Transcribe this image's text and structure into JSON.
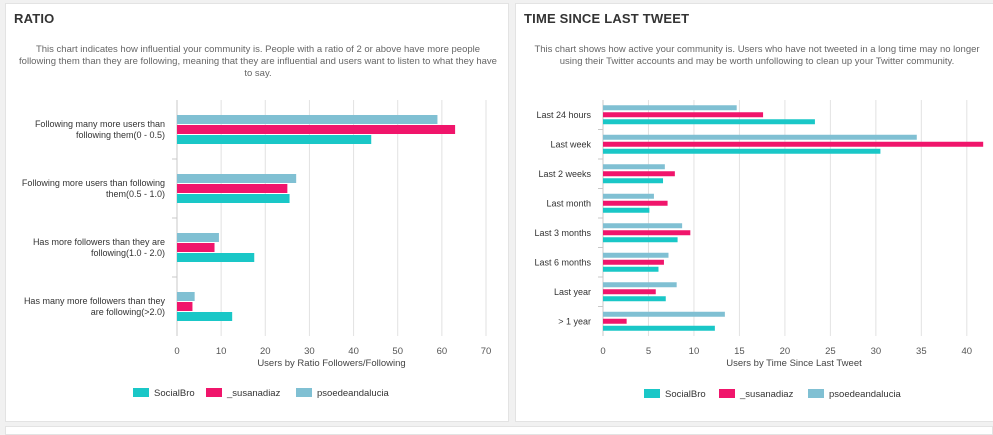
{
  "colors": {
    "SocialBro": "#1ac7c7",
    "_susanadiaz": "#f0156b",
    "psoedeandalucia": "#80c0d3"
  },
  "panels": [
    {
      "title": "RATIO",
      "description": "This chart indicates how influential your community is. People with a ratio of 2 or above have more people following them than they are following, meaning that they are influential and users want to listen to what they have to say."
    },
    {
      "title": "TIME SINCE LAST TWEET",
      "description": "This chart shows how active your community is. Users who have not tweeted in a long time may no longer using their Twitter accounts and may be worth unfollowing to clean up your Twitter community."
    }
  ],
  "chart_data": [
    {
      "type": "bar",
      "orientation": "horizontal",
      "categories": [
        [
          "Following many more users than",
          "following them(0 - 0.5)"
        ],
        [
          "Following more users than following",
          "them(0.5 - 1.0)"
        ],
        [
          "Has more followers than they are",
          "following(1.0 - 2.0)"
        ],
        [
          "Has many more followers than they",
          "are following(>2.0)"
        ]
      ],
      "series": [
        {
          "name": "psoedeandalucia",
          "values": [
            59,
            27,
            9.5,
            4
          ]
        },
        {
          "name": "_susanadiaz",
          "values": [
            63,
            25,
            8.5,
            3.5
          ]
        },
        {
          "name": "SocialBro",
          "values": [
            44,
            25.5,
            17.5,
            12.5
          ]
        }
      ],
      "legend_order": [
        "SocialBro",
        "_susanadiaz",
        "psoedeandalucia"
      ],
      "xlabel": "Users by Ratio Followers/Following",
      "xlim": [
        0,
        70
      ],
      "xticks": [
        0,
        10,
        20,
        30,
        40,
        50,
        60,
        70
      ],
      "grid": true,
      "legend": "bottom"
    },
    {
      "type": "bar",
      "orientation": "horizontal",
      "categories": [
        [
          "Last 24 hours"
        ],
        [
          "Last week"
        ],
        [
          "Last 2 weeks"
        ],
        [
          "Last month"
        ],
        [
          "Last 3 months"
        ],
        [
          "Last 6 months"
        ],
        [
          "Last year"
        ],
        [
          "> 1 year"
        ]
      ],
      "series": [
        {
          "name": "psoedeandalucia",
          "values": [
            14.7,
            34.5,
            6.8,
            5.6,
            8.7,
            7.2,
            8.1,
            13.4
          ]
        },
        {
          "name": "_susanadiaz",
          "values": [
            17.6,
            41.8,
            7.9,
            7.1,
            9.6,
            6.7,
            5.8,
            2.6
          ]
        },
        {
          "name": "SocialBro",
          "values": [
            23.3,
            30.5,
            6.6,
            5.1,
            8.2,
            6.1,
            6.9,
            12.3
          ]
        }
      ],
      "legend_order": [
        "SocialBro",
        "_susanadiaz",
        "psoedeandalucia"
      ],
      "xlabel": "Users by Time Since Last Tweet",
      "xlim": [
        0,
        42
      ],
      "xticks": [
        0,
        5,
        10,
        15,
        20,
        25,
        30,
        35,
        40
      ],
      "grid": true,
      "legend": "bottom"
    }
  ]
}
